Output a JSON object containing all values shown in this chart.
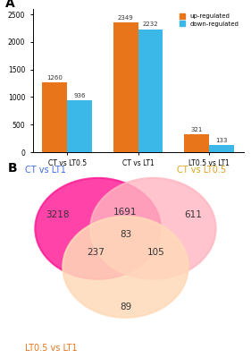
{
  "bar_categories": [
    "CT vs LT0.5",
    "CT vs LT1",
    "LT0.5 vs LT1"
  ],
  "up_regulated": [
    1260,
    2349,
    321
  ],
  "down_regulated": [
    936,
    2232,
    133
  ],
  "bar_color_up": "#E8751A",
  "bar_color_down": "#3BB8E8",
  "legend_up": "up-regulated",
  "legend_down": "down-regulated",
  "ylim": [
    0,
    2600
  ],
  "yticks": [
    0,
    500,
    1000,
    1500,
    2000,
    2500
  ],
  "panel_a_label": "A",
  "panel_b_label": "B",
  "venn_label_lt1": "CT vs LT1",
  "venn_label_lt05": "CT vs LT0.5",
  "venn_label_lt05lt1": "LT0.5 vs LT1",
  "venn_color_lt1": "#FF1493",
  "venn_color_lt05": "#FFB6C1",
  "venn_color_lt05lt1": "#FFDAB9",
  "venn_edge_lt1": "#4169E1",
  "venn_edge_lt05": "#DAA520",
  "venn_edge_lt05lt1": "#E8751A",
  "venn_numbers": {
    "only_lt1": 3218,
    "only_lt05": 611,
    "only_lt05lt1": 89,
    "lt1_lt05": 1691,
    "lt1_lt05lt1": 237,
    "lt05_lt05lt1": 105,
    "all_three": 83
  },
  "venn_label_color_lt1": "#4169E1",
  "venn_label_color_lt05": "#DAA520",
  "venn_label_color_lt05lt1": "#E8751A",
  "bg_color": "#FFFFFF"
}
